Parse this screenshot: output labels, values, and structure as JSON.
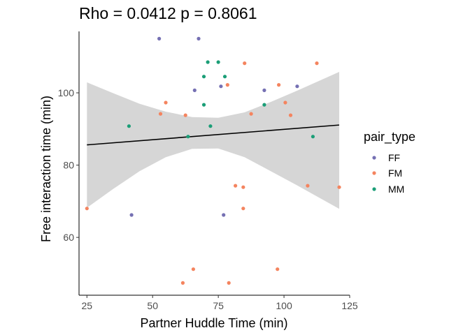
{
  "chart_data": {
    "type": "scatter",
    "title": "Rho = 0.0412 p = 0.8061",
    "xlabel": "Partner Huddle Time (min)",
    "ylabel": "Free interaction time (min)",
    "xlim": [
      22,
      125
    ],
    "ylim": [
      44,
      117
    ],
    "x_ticks": [
      25,
      50,
      75,
      100,
      125
    ],
    "y_ticks": [
      60,
      80,
      100
    ],
    "grid": false,
    "legend": {
      "title": "pair_type",
      "position": "right",
      "entries": [
        "FF",
        "FM",
        "MM"
      ]
    },
    "colors": {
      "FF": "#7570b3",
      "FM": "#f4845f",
      "MM": "#1b9e77",
      "ribbon": "#d6d6d6",
      "line": "#000000"
    },
    "series": [
      {
        "name": "FF",
        "points": [
          {
            "x": 52.5,
            "y": 115
          },
          {
            "x": 67.5,
            "y": 115
          },
          {
            "x": 66,
            "y": 100.7
          },
          {
            "x": 76,
            "y": 101.8
          },
          {
            "x": 92.5,
            "y": 100.7
          },
          {
            "x": 105,
            "y": 101.8
          },
          {
            "x": 42,
            "y": 66.2
          },
          {
            "x": 77,
            "y": 66.2
          }
        ]
      },
      {
        "name": "FM",
        "points": [
          {
            "x": 25,
            "y": 68
          },
          {
            "x": 53,
            "y": 94.2
          },
          {
            "x": 55,
            "y": 97.3
          },
          {
            "x": 62.5,
            "y": 93.8
          },
          {
            "x": 78.5,
            "y": 102.2
          },
          {
            "x": 85,
            "y": 108.2
          },
          {
            "x": 87.5,
            "y": 94.2
          },
          {
            "x": 98,
            "y": 102.2
          },
          {
            "x": 100.5,
            "y": 97.3
          },
          {
            "x": 102.5,
            "y": 93.8
          },
          {
            "x": 112.5,
            "y": 108.2
          },
          {
            "x": 81.5,
            "y": 74.3
          },
          {
            "x": 84.5,
            "y": 73.9
          },
          {
            "x": 84.5,
            "y": 68
          },
          {
            "x": 109,
            "y": 74.3
          },
          {
            "x": 121,
            "y": 73.9
          },
          {
            "x": 65.5,
            "y": 51.2
          },
          {
            "x": 97.5,
            "y": 51.2
          },
          {
            "x": 61.5,
            "y": 47.4
          },
          {
            "x": 79,
            "y": 47.4
          }
        ]
      },
      {
        "name": "MM",
        "points": [
          {
            "x": 71,
            "y": 108.5
          },
          {
            "x": 75,
            "y": 108.5
          },
          {
            "x": 69.5,
            "y": 104.5
          },
          {
            "x": 77.5,
            "y": 104.5
          },
          {
            "x": 69.5,
            "y": 96.7
          },
          {
            "x": 92.5,
            "y": 96.7
          },
          {
            "x": 41,
            "y": 90.8
          },
          {
            "x": 72,
            "y": 90.8
          },
          {
            "x": 63.5,
            "y": 87.9
          },
          {
            "x": 111,
            "y": 87.9
          }
        ]
      }
    ],
    "regression": {
      "x_range": [
        25,
        121
      ],
      "y_start": 85.6,
      "y_end": 91.1
    },
    "confidence_band": {
      "x": [
        25,
        35,
        45,
        55,
        65,
        75,
        85,
        95,
        105,
        121
      ],
      "lower": [
        68.2,
        73.4,
        78.3,
        82.2,
        84.5,
        84.6,
        82.2,
        78.3,
        74.4,
        67.9
      ],
      "upper": [
        102.9,
        99.9,
        97.0,
        94.8,
        93.3,
        93.1,
        94.6,
        97.5,
        100.6,
        105.8
      ]
    }
  }
}
